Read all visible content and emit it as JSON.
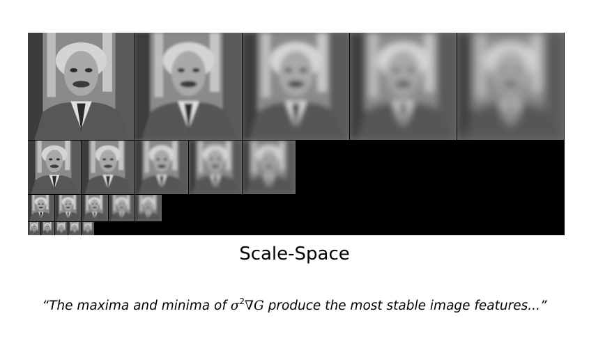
{
  "figure": {
    "caption": "Scale-Space",
    "quote": {
      "before": "“The maxima and minima of ",
      "sigma": "σ",
      "exponent": "2",
      "operator": "∇G",
      "after": " produce the most stable image features...”"
    },
    "octaves": [
      {
        "octave": 1,
        "scales": 5,
        "blur_levels": [
          0,
          1,
          2,
          3,
          4
        ]
      },
      {
        "octave": 2,
        "scales": 5,
        "blur_levels": [
          0,
          1,
          2,
          3,
          4
        ]
      },
      {
        "octave": 3,
        "scales": 5,
        "blur_levels": [
          0,
          1,
          2,
          3,
          4
        ]
      },
      {
        "octave": 4,
        "scales": 5,
        "blur_levels": [
          0,
          1,
          2,
          3,
          4
        ]
      }
    ],
    "colors": {
      "background": "#000000",
      "text": "#000000"
    }
  }
}
